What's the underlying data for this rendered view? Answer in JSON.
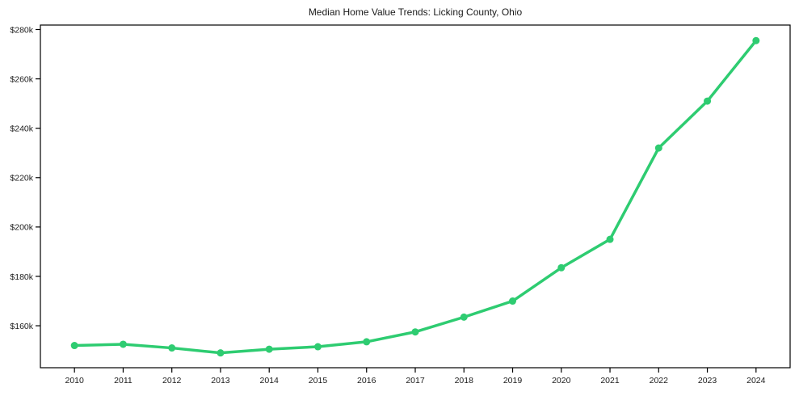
{
  "chart_data": {
    "type": "line",
    "title": "Median Home Value Trends: Licking County, Ohio",
    "xlabel": "",
    "ylabel": "",
    "x": [
      2010,
      2011,
      2012,
      2013,
      2014,
      2015,
      2016,
      2017,
      2018,
      2019,
      2020,
      2021,
      2022,
      2023,
      2024
    ],
    "series": [
      {
        "name": "median-home-value",
        "color": "#2ecc71",
        "values": [
          152000,
          152500,
          151000,
          149000,
          150500,
          151500,
          153500,
          157500,
          163500,
          170000,
          183500,
          195000,
          232000,
          251000,
          275500
        ]
      }
    ],
    "xtick_labels": [
      "2010",
      "2011",
      "2012",
      "2013",
      "2014",
      "2015",
      "2016",
      "2017",
      "2018",
      "2019",
      "2020",
      "2021",
      "2022",
      "2023",
      "2024"
    ],
    "ytick_values": [
      160000,
      180000,
      200000,
      220000,
      240000,
      260000,
      280000
    ],
    "ytick_labels": [
      "$160k",
      "$180k",
      "$200k",
      "$220k",
      "$240k",
      "$260k",
      "$280k"
    ],
    "xlim": [
      2009.3,
      2024.7
    ],
    "ylim": [
      143000,
      281800
    ],
    "grid": false,
    "legend": "none",
    "marker": "circle",
    "background": "#ffffff",
    "axis_color": "#000000",
    "text_color": "#1a1a1a"
  }
}
